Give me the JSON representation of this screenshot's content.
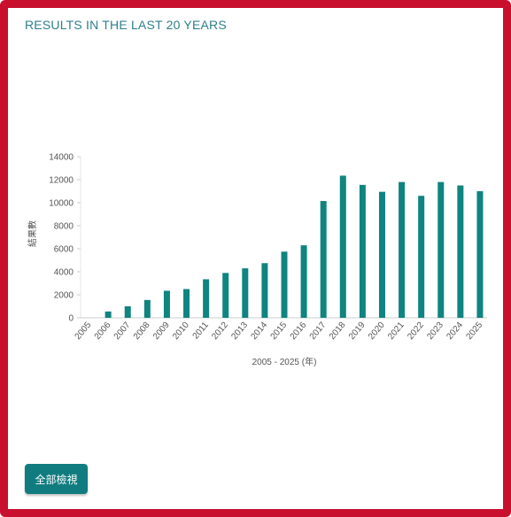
{
  "card": {
    "title": "RESULTS IN THE LAST 20 YEARS",
    "view_all_label": "全部檢視"
  },
  "colors": {
    "frame": "#c8102e",
    "bar": "#0f8480",
    "title": "#2e7f8a",
    "button": "#117c80"
  },
  "chart_data": {
    "type": "bar",
    "categories": [
      "2005",
      "2006",
      "2007",
      "2008",
      "2009",
      "2010",
      "2011",
      "2012",
      "2013",
      "2014",
      "2015",
      "2016",
      "2017",
      "2018",
      "2019",
      "2020",
      "2021",
      "2022",
      "2023",
      "2024",
      "2025"
    ],
    "series": [
      {
        "values": [
          0,
          550,
          1000,
          1550,
          2350,
          2500,
          3350,
          3900,
          4300,
          4750,
          5750,
          6300,
          10150,
          12350,
          11550,
          10950,
          11800,
          10600,
          11800,
          11500,
          11000
        ]
      }
    ],
    "xlabel": "2005 - 2025 (年)",
    "ylabel": "結果數",
    "ylim": [
      0,
      14000
    ],
    "yticks": [
      "0",
      "2000",
      "4000",
      "6000",
      "8000",
      "10000",
      "12000",
      "14000"
    ],
    "grid": false,
    "legend": "none"
  }
}
